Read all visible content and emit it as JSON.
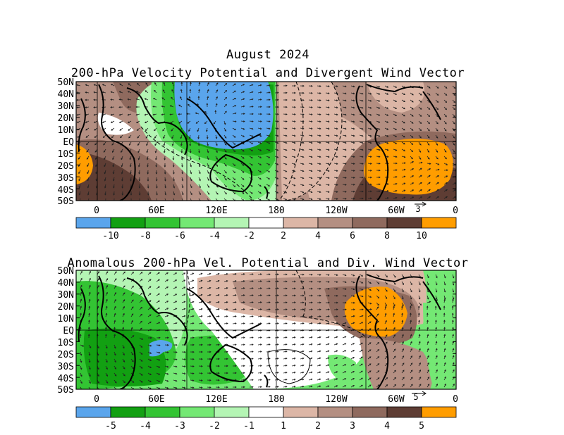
{
  "header": {
    "title": "August 2024",
    "panel1_title": "200-hPa Velocity Potential and Divergent Wind Vector",
    "panel2_title": "Anomalous 200-hPa Vel. Potential and Div. Wind Vector"
  },
  "axes": {
    "lat_labels": [
      "50N",
      "40N",
      "30N",
      "20N",
      "10N",
      "EQ",
      "10S",
      "20S",
      "30S",
      "40S",
      "50S"
    ],
    "lon_labels": [
      "0",
      "60E",
      "120E",
      "180",
      "120W",
      "60W",
      "0"
    ]
  },
  "panel1": {
    "ref_vector_label": "3",
    "colorbar_labels": [
      "-10",
      "-8",
      "-6",
      "-4",
      "-2",
      "2",
      "4",
      "6",
      "8",
      "10"
    ]
  },
  "panel2": {
    "ref_vector_label": "5",
    "colorbar_labels": [
      "-5",
      "-4",
      "-3",
      "-2",
      "-1",
      "1",
      "2",
      "3",
      "4",
      "5"
    ]
  },
  "colors": {
    "c1": "#5aa5ec",
    "c2": "#12a012",
    "c3": "#33c433",
    "c4": "#74e874",
    "c5": "#b4f5b4",
    "c6": "#ffffff",
    "c7": "#dcb6a6",
    "c8": "#b48f82",
    "c9": "#8f6a5e",
    "c10": "#5e3d34",
    "c11": "#ff9d00"
  }
}
